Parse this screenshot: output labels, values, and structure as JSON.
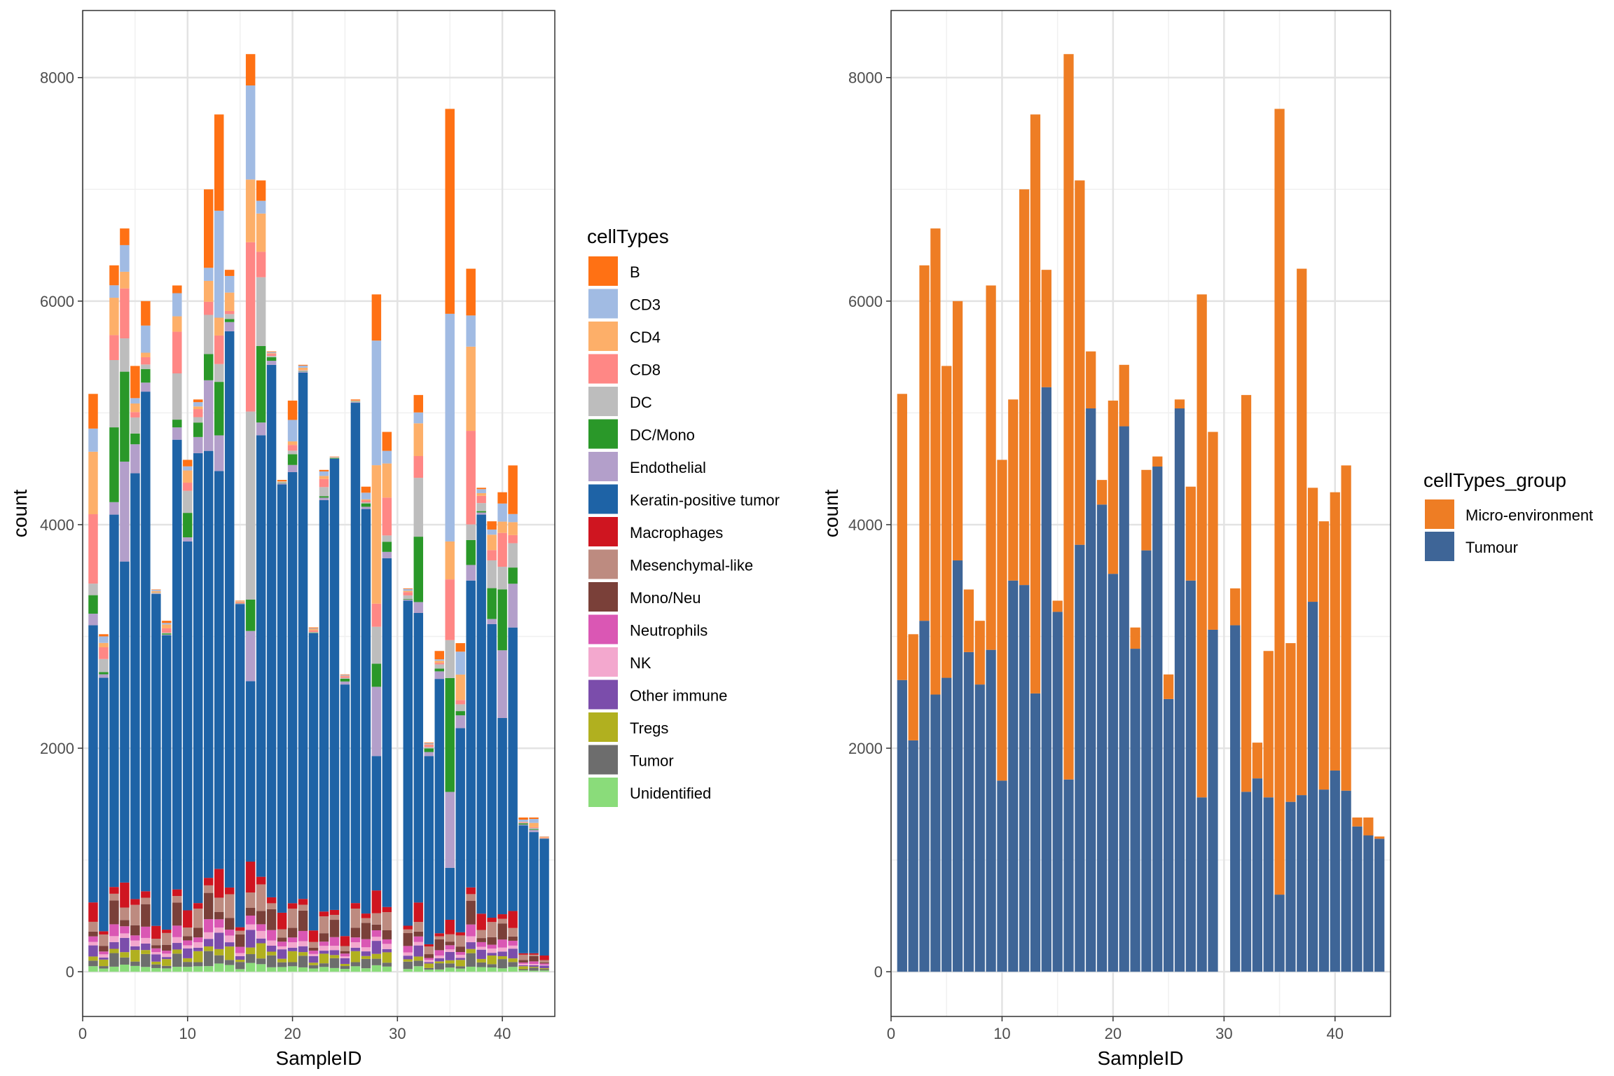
{
  "chart_data": [
    {
      "type": "bar",
      "stacked": true,
      "xlabel": "SampleID",
      "ylabel": "count",
      "xlim": [
        0,
        45
      ],
      "ylim": [
        -400,
        8600
      ],
      "x_ticks": [
        0,
        10,
        20,
        30,
        40
      ],
      "y_ticks": [
        0,
        2000,
        4000,
        6000,
        8000
      ],
      "grid": true,
      "legend": {
        "title": "cellTypes",
        "position": "right",
        "entries": [
          {
            "label": "B",
            "color": "#FF7114"
          },
          {
            "label": "CD3",
            "color": "#A1BBE3"
          },
          {
            "label": "CD4",
            "color": "#FDAF69"
          },
          {
            "label": "CD8",
            "color": "#FF8785"
          },
          {
            "label": "DC",
            "color": "#BDBDBD"
          },
          {
            "label": "DC/Mono",
            "color": "#2A9829"
          },
          {
            "label": "Endothelial",
            "color": "#B39FCA"
          },
          {
            "label": "Keratin-positive tumor",
            "color": "#1E63A6"
          },
          {
            "label": "Macrophages",
            "color": "#CF1520"
          },
          {
            "label": "Mesenchymal-like",
            "color": "#BD8B80"
          },
          {
            "label": "Mono/Neu",
            "color": "#7A4039"
          },
          {
            "label": "Neutrophils",
            "color": "#DA57B4"
          },
          {
            "label": "NK",
            "color": "#F3A8CE"
          },
          {
            "label": "Other immune",
            "color": "#7B4DAB"
          },
          {
            "label": "Tregs",
            "color": "#B1B01F"
          },
          {
            "label": "Tumor",
            "color": "#6D6D6D"
          },
          {
            "label": "Unidentified",
            "color": "#8ADC7A"
          }
        ]
      },
      "samples": [
        {
          "x": 1,
          "total": 5170,
          "ker": 3100
        },
        {
          "x": 2,
          "total": 3020,
          "ker": 2630
        },
        {
          "x": 3,
          "total": 6320,
          "ker": 4090
        },
        {
          "x": 4,
          "total": 6650,
          "ker": 3670
        },
        {
          "x": 5,
          "total": 5420,
          "ker": 4460
        },
        {
          "x": 6,
          "total": 6000,
          "ker": 5190
        },
        {
          "x": 7,
          "total": 3420,
          "ker": 3380
        },
        {
          "x": 8,
          "total": 3140,
          "ker": 3010
        },
        {
          "x": 9,
          "total": 6140,
          "ker": 4760
        },
        {
          "x": 10,
          "total": 4580,
          "ker": 3850
        },
        {
          "x": 11,
          "total": 5120,
          "ker": 4640
        },
        {
          "x": 12,
          "total": 7000,
          "ker": 4660
        },
        {
          "x": 13,
          "total": 7670,
          "ker": 4480
        },
        {
          "x": 14,
          "total": 6280,
          "ker": 5730
        },
        {
          "x": 15,
          "total": 3320,
          "ker": 3290
        },
        {
          "x": 16,
          "total": 8210,
          "ker": 2600
        },
        {
          "x": 17,
          "total": 7080,
          "ker": 4800
        },
        {
          "x": 18,
          "total": 5550,
          "ker": 5430
        },
        {
          "x": 19,
          "total": 4400,
          "ker": 4360
        },
        {
          "x": 20,
          "total": 5110,
          "ker": 4470
        },
        {
          "x": 21,
          "total": 5430,
          "ker": 5360
        },
        {
          "x": 22,
          "total": 3080,
          "ker": 3030
        },
        {
          "x": 23,
          "total": 4490,
          "ker": 4220
        },
        {
          "x": 24,
          "total": 4610,
          "ker": 4590
        },
        {
          "x": 25,
          "total": 2660,
          "ker": 2570
        },
        {
          "x": 26,
          "total": 5120,
          "ker": 5090
        },
        {
          "x": 27,
          "total": 4340,
          "ker": 4140
        },
        {
          "x": 28,
          "total": 6060,
          "ker": 1930
        },
        {
          "x": 29,
          "total": 4830,
          "ker": 3700
        },
        {
          "x": 31,
          "total": 3430,
          "ker": 3320
        },
        {
          "x": 32,
          "total": 5160,
          "ker": 3210
        },
        {
          "x": 33,
          "total": 2050,
          "ker": 1930
        },
        {
          "x": 34,
          "total": 2870,
          "ker": 2620
        },
        {
          "x": 35,
          "total": 7720,
          "ker": 930
        },
        {
          "x": 36,
          "total": 2940,
          "ker": 2180
        },
        {
          "x": 37,
          "total": 6290,
          "ker": 3500
        },
        {
          "x": 38,
          "total": 4330,
          "ker": 4090
        },
        {
          "x": 39,
          "total": 4030,
          "ker": 3110
        },
        {
          "x": 40,
          "total": 4290,
          "ker": 2270
        },
        {
          "x": 41,
          "total": 4530,
          "ker": 3080
        },
        {
          "x": 42,
          "total": 1380,
          "ker": 1310
        },
        {
          "x": 43,
          "total": 1380,
          "ker": 1250
        },
        {
          "x": 44,
          "total": 1210,
          "ker": 1190
        }
      ]
    },
    {
      "type": "bar",
      "stacked": true,
      "xlabel": "SampleID",
      "ylabel": "count",
      "xlim": [
        0,
        45
      ],
      "ylim": [
        -400,
        8600
      ],
      "x_ticks": [
        0,
        10,
        20,
        30,
        40
      ],
      "y_ticks": [
        0,
        2000,
        4000,
        6000,
        8000
      ],
      "grid": true,
      "legend": {
        "title": "cellTypes_group",
        "position": "right",
        "entries": [
          {
            "label": "Micro-environment",
            "color": "#EE7D24"
          },
          {
            "label": "Tumour",
            "color": "#3E6597"
          }
        ]
      },
      "x": [
        1,
        2,
        3,
        4,
        5,
        6,
        7,
        8,
        9,
        10,
        11,
        12,
        13,
        14,
        15,
        16,
        17,
        18,
        19,
        20,
        21,
        22,
        23,
        24,
        25,
        26,
        27,
        28,
        29,
        31,
        32,
        33,
        34,
        35,
        36,
        37,
        38,
        39,
        40,
        41,
        42,
        43,
        44
      ],
      "series": [
        {
          "name": "Tumour",
          "color": "#3E6597",
          "values": [
            2610,
            2070,
            3140,
            2480,
            2630,
            3680,
            2860,
            2570,
            2880,
            1710,
            3500,
            3460,
            2490,
            5230,
            3220,
            1720,
            3820,
            5040,
            4180,
            3560,
            4880,
            2890,
            3770,
            4520,
            2440,
            5040,
            3500,
            1560,
            3060,
            3100,
            1610,
            1730,
            1560,
            690,
            1520,
            1580,
            3310,
            1630,
            1800,
            1620,
            1300,
            1220,
            1190
          ]
        },
        {
          "name": "Micro-environment",
          "color": "#EE7D24",
          "values": [
            2560,
            950,
            3180,
            4170,
            2790,
            2320,
            560,
            570,
            3260,
            2870,
            1620,
            3540,
            5180,
            1050,
            100,
            6490,
            3260,
            510,
            220,
            1550,
            550,
            190,
            720,
            90,
            220,
            80,
            840,
            4500,
            1770,
            330,
            3550,
            320,
            1310,
            7030,
            1420,
            4710,
            1020,
            2400,
            2490,
            2910,
            80,
            160,
            20
          ]
        }
      ]
    }
  ]
}
